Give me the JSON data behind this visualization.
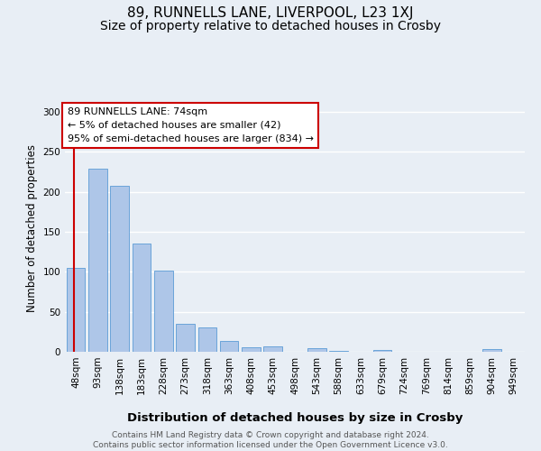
{
  "title": "89, RUNNELLS LANE, LIVERPOOL, L23 1XJ",
  "subtitle": "Size of property relative to detached houses in Crosby",
  "xlabel": "Distribution of detached houses by size in Crosby",
  "ylabel": "Number of detached properties",
  "categories": [
    "48sqm",
    "93sqm",
    "138sqm",
    "183sqm",
    "228sqm",
    "273sqm",
    "318sqm",
    "363sqm",
    "408sqm",
    "453sqm",
    "498sqm",
    "543sqm",
    "588sqm",
    "633sqm",
    "679sqm",
    "724sqm",
    "769sqm",
    "814sqm",
    "859sqm",
    "904sqm",
    "949sqm"
  ],
  "values": [
    105,
    229,
    207,
    135,
    102,
    35,
    30,
    13,
    6,
    7,
    0,
    4,
    1,
    0,
    2,
    0,
    0,
    0,
    0,
    3,
    0
  ],
  "bar_color": "#aec6e8",
  "bar_edge_color": "#5b9bd5",
  "bar_width": 0.85,
  "vline_color": "#cc0000",
  "annotation_box_text": "89 RUNNELLS LANE: 74sqm\n← 5% of detached houses are smaller (42)\n95% of semi-detached houses are larger (834) →",
  "annotation_box_color": "#ffffff",
  "annotation_box_edge_color": "#cc0000",
  "ylim": [
    0,
    310
  ],
  "yticks": [
    0,
    50,
    100,
    150,
    200,
    250,
    300
  ],
  "bg_color": "#e8eef5",
  "grid_color": "#ffffff",
  "footer_text": "Contains HM Land Registry data © Crown copyright and database right 2024.\nContains public sector information licensed under the Open Government Licence v3.0.",
  "title_fontsize": 11,
  "subtitle_fontsize": 10,
  "xlabel_fontsize": 9.5,
  "ylabel_fontsize": 8.5,
  "tick_fontsize": 7.5,
  "annotation_fontsize": 8,
  "footer_fontsize": 6.5
}
